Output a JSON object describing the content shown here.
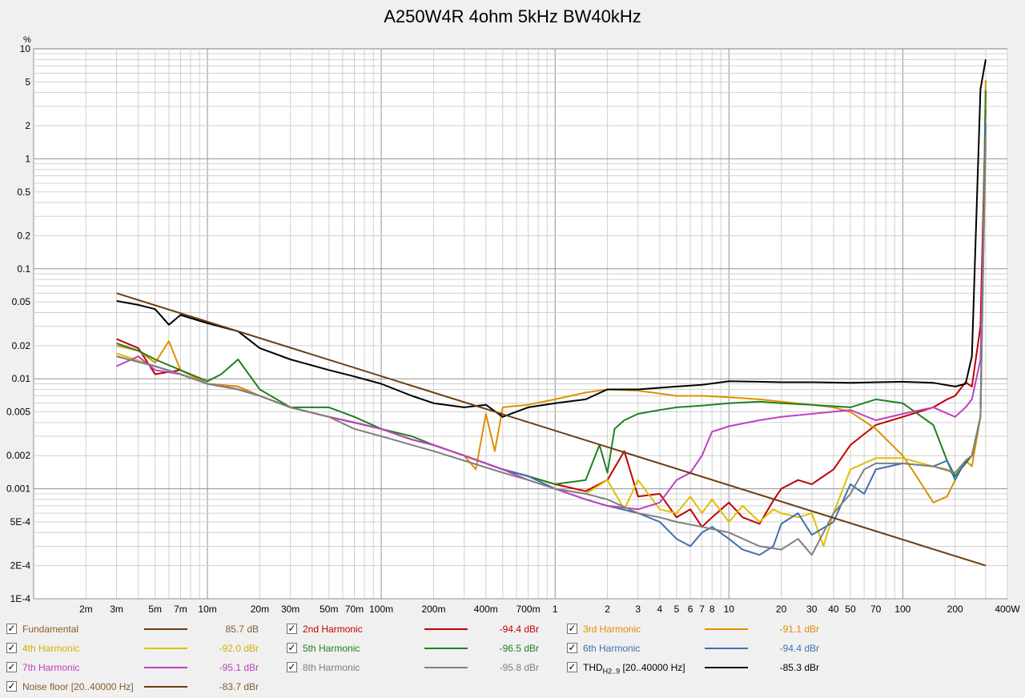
{
  "chart_data": {
    "type": "line",
    "title": "A250W4R 4ohm 5kHz BW40kHz",
    "y_unit": "%",
    "x_unit": "W",
    "x_scale": "log",
    "y_scale": "log",
    "xlim": [
      0.001,
      400
    ],
    "ylim": [
      0.0001,
      10
    ],
    "grid": true,
    "x_tick_labels": [
      {
        "v": 0.002,
        "t": "2m"
      },
      {
        "v": 0.003,
        "t": "3m"
      },
      {
        "v": 0.005,
        "t": "5m"
      },
      {
        "v": 0.007,
        "t": "7m"
      },
      {
        "v": 0.01,
        "t": "10m"
      },
      {
        "v": 0.02,
        "t": "20m"
      },
      {
        "v": 0.03,
        "t": "30m"
      },
      {
        "v": 0.05,
        "t": "50m"
      },
      {
        "v": 0.07,
        "t": "70m"
      },
      {
        "v": 0.1,
        "t": "100m"
      },
      {
        "v": 0.2,
        "t": "200m"
      },
      {
        "v": 0.4,
        "t": "400m"
      },
      {
        "v": 0.7,
        "t": "700m"
      },
      {
        "v": 1,
        "t": "1"
      },
      {
        "v": 2,
        "t": "2"
      },
      {
        "v": 3,
        "t": "3"
      },
      {
        "v": 4,
        "t": "4"
      },
      {
        "v": 5,
        "t": "5"
      },
      {
        "v": 6,
        "t": "6"
      },
      {
        "v": 7,
        "t": "7"
      },
      {
        "v": 8,
        "t": "8"
      },
      {
        "v": 10,
        "t": "10"
      },
      {
        "v": 20,
        "t": "20"
      },
      {
        "v": 30,
        "t": "30"
      },
      {
        "v": 40,
        "t": "40"
      },
      {
        "v": 50,
        "t": "50"
      },
      {
        "v": 70,
        "t": "70"
      },
      {
        "v": 100,
        "t": "100"
      },
      {
        "v": 200,
        "t": "200"
      },
      {
        "v": 400,
        "t": "400W"
      }
    ],
    "y_tick_labels": [
      {
        "v": 10,
        "t": "10"
      },
      {
        "v": 5,
        "t": "5"
      },
      {
        "v": 2,
        "t": "2"
      },
      {
        "v": 1,
        "t": "1"
      },
      {
        "v": 0.5,
        "t": "0.5"
      },
      {
        "v": 0.2,
        "t": "0.2"
      },
      {
        "v": 0.1,
        "t": "0.1"
      },
      {
        "v": 0.05,
        "t": "0.05"
      },
      {
        "v": 0.02,
        "t": "0.02"
      },
      {
        "v": 0.01,
        "t": "0.01"
      },
      {
        "v": 0.005,
        "t": "0.005"
      },
      {
        "v": 0.002,
        "t": "0.002"
      },
      {
        "v": 0.001,
        "t": "0.001"
      },
      {
        "v": 0.0005,
        "t": "5E-4"
      },
      {
        "v": 0.0002,
        "t": "2E-4"
      },
      {
        "v": 0.0001,
        "t": "1E-4"
      }
    ],
    "series": [
      {
        "name": "2nd Harmonic",
        "color": "#c00000",
        "x": [
          0.003,
          0.004,
          0.005,
          0.007,
          0.01,
          0.015,
          0.02,
          0.03,
          0.05,
          0.07,
          0.1,
          0.15,
          0.2,
          0.3,
          0.5,
          0.7,
          1,
          1.5,
          2,
          2.5,
          3,
          4,
          5,
          6,
          7,
          8,
          10,
          12,
          15,
          18,
          20,
          25,
          30,
          40,
          50,
          70,
          100,
          150,
          180,
          200,
          230,
          250,
          280,
          300
        ],
        "y": [
          0.023,
          0.019,
          0.011,
          0.012,
          0.009,
          0.0085,
          0.007,
          0.0055,
          0.0045,
          0.004,
          0.0035,
          0.0028,
          0.0025,
          0.002,
          0.0015,
          0.0013,
          0.0011,
          0.00095,
          0.0012,
          0.0022,
          0.00085,
          0.0009,
          0.00055,
          0.00065,
          0.00045,
          0.00055,
          0.00075,
          0.00055,
          0.00048,
          0.00078,
          0.001,
          0.0012,
          0.0011,
          0.0015,
          0.0025,
          0.0038,
          0.0045,
          0.0055,
          0.0065,
          0.007,
          0.0093,
          0.0085,
          0.03,
          2.8
        ]
      },
      {
        "name": "3rd Harmonic",
        "color": "#e09000",
        "x": [
          0.003,
          0.004,
          0.005,
          0.006,
          0.007,
          0.01,
          0.015,
          0.02,
          0.03,
          0.05,
          0.07,
          0.1,
          0.15,
          0.2,
          0.3,
          0.35,
          0.4,
          0.45,
          0.5,
          0.7,
          1,
          1.5,
          2,
          3,
          5,
          7,
          10,
          15,
          20,
          30,
          40,
          50,
          70,
          100,
          120,
          150,
          180,
          200,
          230,
          250,
          280,
          300
        ],
        "y": [
          0.02,
          0.018,
          0.014,
          0.022,
          0.012,
          0.009,
          0.0085,
          0.007,
          0.0055,
          0.0045,
          0.004,
          0.0035,
          0.0028,
          0.0025,
          0.002,
          0.0015,
          0.0048,
          0.0022,
          0.0055,
          0.0058,
          0.0065,
          0.0075,
          0.008,
          0.0078,
          0.007,
          0.007,
          0.0068,
          0.0065,
          0.0062,
          0.0058,
          0.0055,
          0.005,
          0.0035,
          0.002,
          0.0013,
          0.00075,
          0.00085,
          0.0012,
          0.0018,
          0.0016,
          0.0045,
          5.2
        ]
      },
      {
        "name": "4th Harmonic",
        "color": "#e0c000",
        "x": [
          0.003,
          0.005,
          0.007,
          0.01,
          0.015,
          0.02,
          0.03,
          0.05,
          0.07,
          0.1,
          0.15,
          0.2,
          0.3,
          0.5,
          0.7,
          1,
          1.5,
          2,
          2.5,
          3,
          4,
          5,
          6,
          7,
          8,
          10,
          12,
          15,
          18,
          20,
          25,
          30,
          35,
          40,
          50,
          70,
          100,
          150,
          180,
          200,
          230,
          250,
          280,
          300
        ],
        "y": [
          0.017,
          0.013,
          0.011,
          0.009,
          0.008,
          0.007,
          0.0055,
          0.0045,
          0.004,
          0.0035,
          0.0028,
          0.0025,
          0.002,
          0.0015,
          0.0013,
          0.001,
          0.0009,
          0.0012,
          0.00065,
          0.0012,
          0.00065,
          0.0006,
          0.00085,
          0.0006,
          0.0008,
          0.0005,
          0.0007,
          0.0005,
          0.00065,
          0.0006,
          0.00055,
          0.0006,
          0.0003,
          0.0006,
          0.0015,
          0.0019,
          0.0019,
          0.0016,
          0.0015,
          0.0013,
          0.0018,
          0.002,
          0.0045,
          3.8
        ]
      },
      {
        "name": "5th Harmonic",
        "color": "#208020",
        "x": [
          0.003,
          0.004,
          0.005,
          0.007,
          0.01,
          0.012,
          0.015,
          0.02,
          0.03,
          0.05,
          0.07,
          0.1,
          0.15,
          0.2,
          0.3,
          0.5,
          0.7,
          1,
          1.5,
          1.8,
          2,
          2.2,
          2.5,
          3,
          4,
          5,
          7,
          10,
          15,
          20,
          30,
          50,
          70,
          100,
          150,
          180,
          200,
          230,
          250,
          280,
          300
        ],
        "y": [
          0.021,
          0.018,
          0.015,
          0.012,
          0.0095,
          0.011,
          0.015,
          0.008,
          0.0055,
          0.0055,
          0.0045,
          0.0035,
          0.003,
          0.0025,
          0.002,
          0.0015,
          0.0013,
          0.0011,
          0.0012,
          0.0025,
          0.0014,
          0.0035,
          0.0042,
          0.0048,
          0.0052,
          0.0055,
          0.0057,
          0.006,
          0.0062,
          0.006,
          0.0058,
          0.0055,
          0.0065,
          0.006,
          0.0038,
          0.0018,
          0.0013,
          0.0017,
          0.002,
          0.0045,
          4.2
        ]
      },
      {
        "name": "6th Harmonic",
        "color": "#4070b0",
        "x": [
          0.003,
          0.005,
          0.007,
          0.01,
          0.015,
          0.02,
          0.03,
          0.05,
          0.07,
          0.1,
          0.15,
          0.2,
          0.3,
          0.5,
          0.7,
          1,
          1.5,
          2,
          3,
          4,
          5,
          6,
          7,
          8,
          10,
          12,
          15,
          18,
          20,
          25,
          30,
          40,
          50,
          60,
          70,
          100,
          150,
          180,
          200,
          230,
          250,
          280,
          300
        ],
        "y": [
          0.016,
          0.013,
          0.011,
          0.009,
          0.008,
          0.007,
          0.0055,
          0.0045,
          0.004,
          0.0035,
          0.0028,
          0.0025,
          0.002,
          0.0015,
          0.0013,
          0.001,
          0.0008,
          0.0007,
          0.0006,
          0.0005,
          0.00035,
          0.0003,
          0.0004,
          0.00045,
          0.00035,
          0.00028,
          0.00025,
          0.0003,
          0.00048,
          0.0006,
          0.00038,
          0.0005,
          0.0011,
          0.0009,
          0.0015,
          0.0017,
          0.0016,
          0.0018,
          0.0012,
          0.0018,
          0.002,
          0.0045,
          2.1
        ]
      },
      {
        "name": "7th Harmonic",
        "color": "#c040c0",
        "x": [
          0.003,
          0.004,
          0.005,
          0.007,
          0.01,
          0.015,
          0.02,
          0.03,
          0.05,
          0.07,
          0.1,
          0.15,
          0.2,
          0.3,
          0.5,
          0.7,
          1,
          1.5,
          2,
          3,
          4,
          5,
          6,
          7,
          8,
          10,
          15,
          20,
          30,
          50,
          70,
          100,
          150,
          200,
          230,
          250,
          280,
          300
        ],
        "y": [
          0.013,
          0.016,
          0.012,
          0.011,
          0.009,
          0.008,
          0.007,
          0.0055,
          0.0045,
          0.004,
          0.0035,
          0.0028,
          0.0025,
          0.002,
          0.0015,
          0.0012,
          0.001,
          0.0008,
          0.0007,
          0.00065,
          0.00075,
          0.0012,
          0.0014,
          0.002,
          0.0033,
          0.0037,
          0.0042,
          0.0045,
          0.0048,
          0.0052,
          0.0042,
          0.0048,
          0.0055,
          0.0045,
          0.0055,
          0.0065,
          0.015,
          1.3
        ]
      },
      {
        "name": "8th Harmonic",
        "color": "#808080",
        "x": [
          0.003,
          0.005,
          0.007,
          0.01,
          0.015,
          0.02,
          0.03,
          0.05,
          0.07,
          0.1,
          0.15,
          0.2,
          0.3,
          0.5,
          0.7,
          1,
          1.5,
          2,
          3,
          4,
          5,
          7,
          10,
          15,
          20,
          25,
          30,
          35,
          40,
          50,
          60,
          70,
          100,
          150,
          200,
          230,
          250,
          280,
          300
        ],
        "y": [
          0.016,
          0.013,
          0.011,
          0.009,
          0.008,
          0.007,
          0.0055,
          0.0045,
          0.0035,
          0.003,
          0.0025,
          0.0022,
          0.0018,
          0.0014,
          0.0012,
          0.001,
          0.0009,
          0.0008,
          0.0006,
          0.00055,
          0.0005,
          0.00045,
          0.0004,
          0.0003,
          0.00028,
          0.00035,
          0.00025,
          0.0004,
          0.0006,
          0.0009,
          0.0015,
          0.0017,
          0.0017,
          0.0016,
          0.0014,
          0.0018,
          0.002,
          0.0045,
          1.6
        ]
      },
      {
        "name": "THD",
        "color": "#000000",
        "x": [
          0.003,
          0.004,
          0.005,
          0.006,
          0.007,
          0.01,
          0.015,
          0.02,
          0.03,
          0.05,
          0.07,
          0.1,
          0.15,
          0.2,
          0.3,
          0.4,
          0.5,
          0.7,
          1,
          1.5,
          2,
          3,
          5,
          7,
          10,
          15,
          20,
          30,
          50,
          70,
          100,
          150,
          200,
          230,
          250,
          280,
          300
        ],
        "y": [
          0.051,
          0.047,
          0.043,
          0.031,
          0.038,
          0.032,
          0.027,
          0.019,
          0.015,
          0.012,
          0.0105,
          0.009,
          0.007,
          0.006,
          0.0055,
          0.0058,
          0.0045,
          0.0055,
          0.006,
          0.0065,
          0.008,
          0.008,
          0.0085,
          0.0088,
          0.0095,
          0.0094,
          0.0093,
          0.0093,
          0.0092,
          0.0093,
          0.0094,
          0.0092,
          0.0085,
          0.009,
          0.016,
          4.3,
          8
        ]
      },
      {
        "name": "Noise floor",
        "color": "#6b3c10",
        "x": [
          0.003,
          300
        ],
        "y": [
          0.06,
          0.0002
        ]
      }
    ]
  },
  "legend": [
    {
      "label": "Fundamental",
      "value": "85.7 dB",
      "color": "#6b3c10",
      "text_color": "#8b5a2b",
      "checked": "✓"
    },
    {
      "label": "2nd Harmonic",
      "value": "-94.4 dBr",
      "color": "#c00000",
      "text_color": "#c00000",
      "checked": "✓"
    },
    {
      "label": "3rd Harmonic",
      "value": "-91.1 dBr",
      "color": "#e09000",
      "text_color": "#e09000",
      "checked": "✓"
    },
    {
      "label": "4th Harmonic",
      "value": "-92.0 dBr",
      "color": "#e0c000",
      "text_color": "#d4b000",
      "checked": "✓"
    },
    {
      "label": "5th Harmonic",
      "value": "-96.5 dBr",
      "color": "#208020",
      "text_color": "#208020",
      "checked": "✓"
    },
    {
      "label": "6th Harmonic",
      "value": "-94.4 dBr",
      "color": "#4070b0",
      "text_color": "#4070b0",
      "checked": "✓"
    },
    {
      "label": "7th Harmonic",
      "value": "-95.1 dBr",
      "color": "#c040c0",
      "text_color": "#c040c0",
      "checked": "✓"
    },
    {
      "label": "8th Harmonic",
      "value": "-95.8 dBr",
      "color": "#808080",
      "text_color": "#808080",
      "checked": "✓"
    },
    {
      "label_main": "THD",
      "label_sub": "H2..9",
      "label_tail": " [20..40000 Hz]",
      "value": "-85.3 dBr",
      "color": "#000000",
      "text_color": "#000000",
      "checked": "✓"
    },
    {
      "label": "Noise floor [20..40000 Hz]",
      "value": "-83.7 dBr",
      "color": "#6b3c10",
      "text_color": "#8b5a2b",
      "checked": "✓"
    }
  ]
}
